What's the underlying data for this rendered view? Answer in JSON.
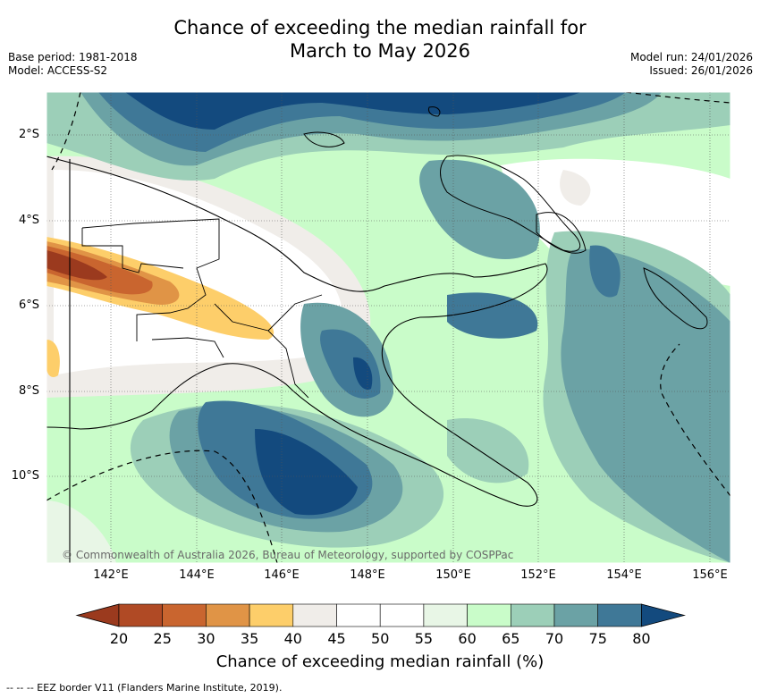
{
  "title_line1": "Chance of exceeding the median rainfall for",
  "title_line2": "March to May 2026",
  "base_period": "Base period: 1981-2018",
  "model": "Model: ACCESS-S2",
  "model_run": "Model run: 24/01/2026",
  "issued": "Issued: 26/01/2026",
  "copyright": "© Commonwealth of Australia 2026, Bureau of Meteorology, supported by COSPPac",
  "lat_labels": [
    "2°S",
    "4°S",
    "6°S",
    "8°S",
    "10°S"
  ],
  "lon_labels": [
    "142°E",
    "144°E",
    "146°E",
    "148°E",
    "150°E",
    "152°E",
    "154°E",
    "156°E"
  ],
  "colorbar": {
    "title": "Chance of exceeding median rainfall (%)",
    "labels": [
      "20",
      "25",
      "30",
      "35",
      "40",
      "45",
      "50",
      "55",
      "60",
      "65",
      "70",
      "75",
      "80"
    ],
    "colors": [
      "#9b3a1e",
      "#b04a25",
      "#c9652f",
      "#e09446",
      "#fdce6a",
      "#f0ede9",
      "#ffffff",
      "#ffffff",
      "#e8f6e6",
      "#c9fcc9",
      "#9ccfb8",
      "#6ba2a5",
      "#3f7897",
      "#134a7e"
    ]
  },
  "footer": "--  --  -- EEZ border V11 (Flanders Marine Institute, 2019)."
}
